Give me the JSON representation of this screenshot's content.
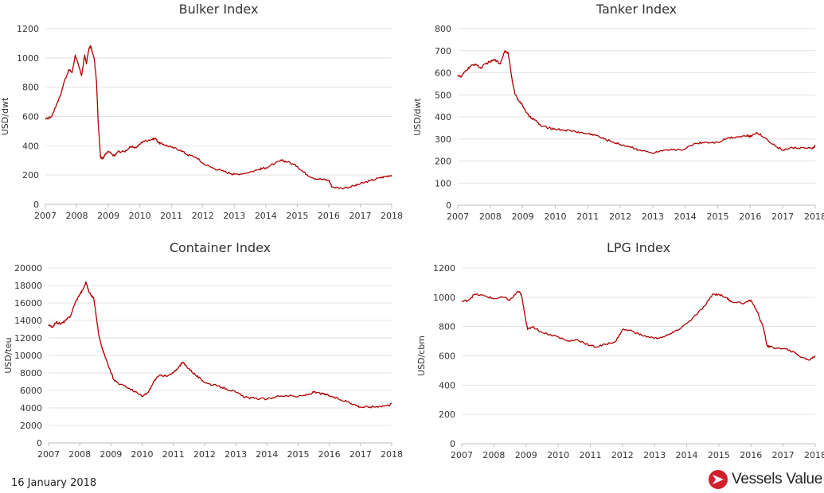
{
  "date_label": "16 January 2018",
  "brand": {
    "name": "Vessels Value",
    "accent": "#d01f2d"
  },
  "line_color": "#b00000",
  "chart_data": [
    {
      "type": "line",
      "title": "Bulker Index",
      "ylabel": "USD/dwt",
      "xlabel": "",
      "ylim": [
        0,
        1200
      ],
      "yticks": [
        0,
        200,
        400,
        600,
        800,
        1000,
        1200
      ],
      "xlim": [
        2007,
        2018
      ],
      "xticks": [
        2007,
        2008,
        2009,
        2010,
        2011,
        2012,
        2013,
        2014,
        2015,
        2016,
        2017,
        2018
      ],
      "grid": true,
      "series": [
        {
          "x": [
            2007.0,
            2007.2,
            2007.35,
            2007.5,
            2007.6,
            2007.75,
            2007.85,
            2007.95,
            2008.05,
            2008.15,
            2008.25,
            2008.3,
            2008.38,
            2008.43,
            2008.48,
            2008.55,
            2008.62,
            2008.68,
            2008.75,
            2008.8,
            2008.85,
            2008.9,
            2009.0,
            2009.2,
            2009.3,
            2009.5,
            2009.7,
            2009.9,
            2010.1,
            2010.3,
            2010.5,
            2010.6,
            2010.75,
            2011.0,
            2011.3,
            2011.5,
            2011.8,
            2012.0,
            2012.3,
            2012.6,
            2012.9,
            2013.0,
            2013.4,
            2013.8,
            2014.0,
            2014.3,
            2014.5,
            2014.7,
            2015.0,
            2015.2,
            2015.5,
            2015.8,
            2016.0,
            2016.1,
            2016.4,
            2016.8,
            2017.0,
            2017.3,
            2017.6,
            2017.8,
            2018.0
          ],
          "values": [
            580,
            600,
            680,
            760,
            840,
            920,
            900,
            1020,
            950,
            880,
            1020,
            960,
            1060,
            1080,
            1050,
            1000,
            850,
            550,
            330,
            310,
            320,
            340,
            360,
            330,
            360,
            360,
            390,
            390,
            430,
            440,
            450,
            420,
            410,
            390,
            370,
            340,
            320,
            280,
            250,
            230,
            210,
            205,
            215,
            240,
            250,
            280,
            300,
            290,
            260,
            220,
            180,
            170,
            165,
            120,
            110,
            125,
            140,
            160,
            180,
            190,
            200
          ]
        }
      ]
    },
    {
      "type": "line",
      "title": "Tanker Index",
      "ylabel": "USD/dwt",
      "xlabel": "",
      "ylim": [
        0,
        800
      ],
      "yticks": [
        0,
        100,
        200,
        300,
        400,
        500,
        600,
        700,
        800
      ],
      "xlim": [
        2007,
        2018
      ],
      "xticks": [
        2007,
        2008,
        2009,
        2010,
        2011,
        2012,
        2013,
        2014,
        2015,
        2016,
        2017,
        2018
      ],
      "grid": true,
      "series": [
        {
          "x": [
            2007.0,
            2007.1,
            2007.25,
            2007.4,
            2007.55,
            2007.7,
            2007.85,
            2008.0,
            2008.15,
            2008.3,
            2008.45,
            2008.55,
            2008.62,
            2008.68,
            2008.75,
            2008.85,
            2009.0,
            2009.2,
            2009.35,
            2009.55,
            2009.8,
            2010.0,
            2010.3,
            2010.6,
            2010.9,
            2011.2,
            2011.5,
            2011.8,
            2012.0,
            2012.3,
            2012.6,
            2013.0,
            2013.3,
            2013.6,
            2014.0,
            2014.3,
            2014.6,
            2015.0,
            2015.3,
            2015.6,
            2015.9,
            2016.0,
            2016.2,
            2016.5,
            2016.8,
            2017.0,
            2017.3,
            2017.6,
            2017.9,
            2018.0
          ],
          "values": [
            590,
            580,
            610,
            630,
            640,
            620,
            640,
            650,
            660,
            640,
            700,
            690,
            620,
            560,
            510,
            480,
            450,
            400,
            390,
            360,
            350,
            345,
            340,
            335,
            325,
            320,
            300,
            285,
            275,
            265,
            250,
            235,
            245,
            250,
            255,
            280,
            285,
            285,
            305,
            310,
            315,
            310,
            330,
            300,
            265,
            250,
            260,
            260,
            255,
            270
          ]
        }
      ]
    },
    {
      "type": "line",
      "title": "Container Index",
      "ylabel": "USD/teu",
      "xlabel": "",
      "ylim": [
        0,
        20000
      ],
      "yticks": [
        0,
        2000,
        4000,
        6000,
        8000,
        10000,
        12000,
        14000,
        16000,
        18000,
        20000
      ],
      "xlim": [
        2007,
        2018
      ],
      "xticks": [
        2007,
        2008,
        2009,
        2010,
        2011,
        2012,
        2013,
        2014,
        2015,
        2016,
        2017,
        2018
      ],
      "grid": true,
      "series": [
        {
          "x": [
            2007.0,
            2007.1,
            2007.25,
            2007.4,
            2007.55,
            2007.7,
            2007.85,
            2008.0,
            2008.1,
            2008.2,
            2008.3,
            2008.45,
            2008.55,
            2008.6,
            2008.7,
            2008.8,
            2008.95,
            2009.1,
            2009.3,
            2009.6,
            2009.8,
            2010.0,
            2010.2,
            2010.4,
            2010.6,
            2010.8,
            2011.0,
            2011.2,
            2011.3,
            2011.5,
            2011.7,
            2011.9,
            2012.1,
            2012.4,
            2012.7,
            2013.0,
            2013.3,
            2013.6,
            2014.0,
            2014.3,
            2014.6,
            2015.0,
            2015.3,
            2015.5,
            2015.8,
            2016.0,
            2016.3,
            2016.6,
            2016.8,
            2017.0,
            2017.3,
            2017.6,
            2017.9,
            2018.0
          ],
          "values": [
            13500,
            13200,
            13800,
            13600,
            14000,
            14500,
            16000,
            17000,
            17500,
            18400,
            17200,
            16500,
            14000,
            12500,
            11000,
            10000,
            8500,
            7200,
            6700,
            6200,
            5800,
            5300,
            5800,
            7200,
            7800,
            7600,
            8000,
            8800,
            9200,
            8500,
            7800,
            7200,
            6800,
            6500,
            6200,
            5800,
            5200,
            5100,
            5000,
            5300,
            5400,
            5300,
            5500,
            5800,
            5600,
            5400,
            5000,
            4700,
            4400,
            4100,
            4100,
            4200,
            4300,
            4500
          ]
        }
      ]
    },
    {
      "type": "line",
      "title": "LPG Index",
      "ylabel": "USD/cbm",
      "xlabel": "",
      "ylim": [
        0,
        1200
      ],
      "yticks": [
        0,
        200,
        400,
        600,
        800,
        1000,
        1200
      ],
      "xlim": [
        2007,
        2018
      ],
      "xticks": [
        2007,
        2008,
        2009,
        2010,
        2011,
        2012,
        2013,
        2014,
        2015,
        2016,
        2017,
        2018
      ],
      "grid": true,
      "series": [
        {
          "x": [
            2007.0,
            2007.2,
            2007.4,
            2007.7,
            2008.0,
            2008.3,
            2008.5,
            2008.75,
            2008.85,
            2008.95,
            2009.05,
            2009.2,
            2009.5,
            2010.0,
            2010.3,
            2010.6,
            2011.0,
            2011.2,
            2011.5,
            2011.8,
            2012.0,
            2012.3,
            2012.6,
            2013.0,
            2013.3,
            2013.6,
            2014.0,
            2014.3,
            2014.6,
            2014.8,
            2015.0,
            2015.2,
            2015.4,
            2015.8,
            2016.0,
            2016.2,
            2016.4,
            2016.5,
            2016.6,
            2016.9,
            2017.2,
            2017.5,
            2017.8,
            2018.0
          ],
          "values": [
            970,
            980,
            1020,
            1010,
            990,
            1000,
            980,
            1040,
            1020,
            900,
            780,
            800,
            760,
            730,
            700,
            710,
            670,
            660,
            680,
            700,
            780,
            770,
            740,
            720,
            730,
            760,
            820,
            880,
            950,
            1020,
            1020,
            1000,
            970,
            960,
            980,
            900,
            780,
            670,
            660,
            650,
            640,
            600,
            570,
            600
          ]
        }
      ]
    }
  ]
}
